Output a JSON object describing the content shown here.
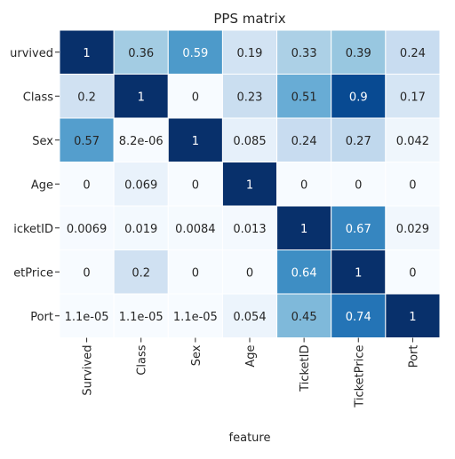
{
  "chart_data": {
    "type": "heatmap",
    "title": "PPS matrix",
    "xlabel": "feature",
    "ylabel": "",
    "x_labels": [
      "Survived",
      "Class",
      "Sex",
      "Age",
      "TicketID",
      "TicketPrice",
      "Port"
    ],
    "y_labels": [
      "Survived",
      "Class",
      "Sex",
      "Age",
      "TicketID",
      "TicketPrice",
      "Port"
    ],
    "y_labels_visible": [
      "urvived",
      "Class",
      "Sex",
      "Age",
      "icketID",
      "etPrice",
      "Port"
    ],
    "values": [
      [
        1,
        0.36,
        0.59,
        0.19,
        0.33,
        0.39,
        0.24
      ],
      [
        0.2,
        1,
        0,
        0.23,
        0.51,
        0.9,
        0.17
      ],
      [
        0.57,
        8.2e-06,
        1,
        0.085,
        0.24,
        0.27,
        0.042
      ],
      [
        0,
        0.069,
        0,
        1,
        0,
        0,
        0
      ],
      [
        0.0069,
        0.019,
        0.0084,
        0.013,
        1,
        0.67,
        0.029
      ],
      [
        0,
        0.2,
        0,
        0,
        0.64,
        1,
        0
      ],
      [
        1.1e-05,
        1.1e-05,
        1.1e-05,
        0.054,
        0.45,
        0.74,
        1
      ]
    ],
    "cell_labels": [
      [
        "1",
        "0.36",
        "0.59",
        "0.19",
        "0.33",
        "0.39",
        "0.24"
      ],
      [
        "0.2",
        "1",
        "0",
        "0.23",
        "0.51",
        "0.9",
        "0.17"
      ],
      [
        "0.57",
        "8.2e-06",
        "1",
        "0.085",
        "0.24",
        "0.27",
        "0.042"
      ],
      [
        "0",
        "0.069",
        "0",
        "1",
        "0",
        "0",
        "0"
      ],
      [
        "0.0069",
        "0.019",
        "0.0084",
        "0.013",
        "1",
        "0.67",
        "0.029"
      ],
      [
        "0",
        "0.2",
        "0",
        "0",
        "0.64",
        "1",
        "0"
      ],
      [
        "1.1e-05",
        "1.1e-05",
        "1.1e-05",
        "0.054",
        "0.45",
        "0.74",
        "1"
      ]
    ],
    "colormap": "Blues",
    "vmin": 0,
    "vmax": 1,
    "colors": {
      "low": "#f7fbff",
      "high": "#08306b",
      "cell_border": "#ffffff",
      "text_light": "#ffffff",
      "text_dark": "#262626"
    }
  }
}
